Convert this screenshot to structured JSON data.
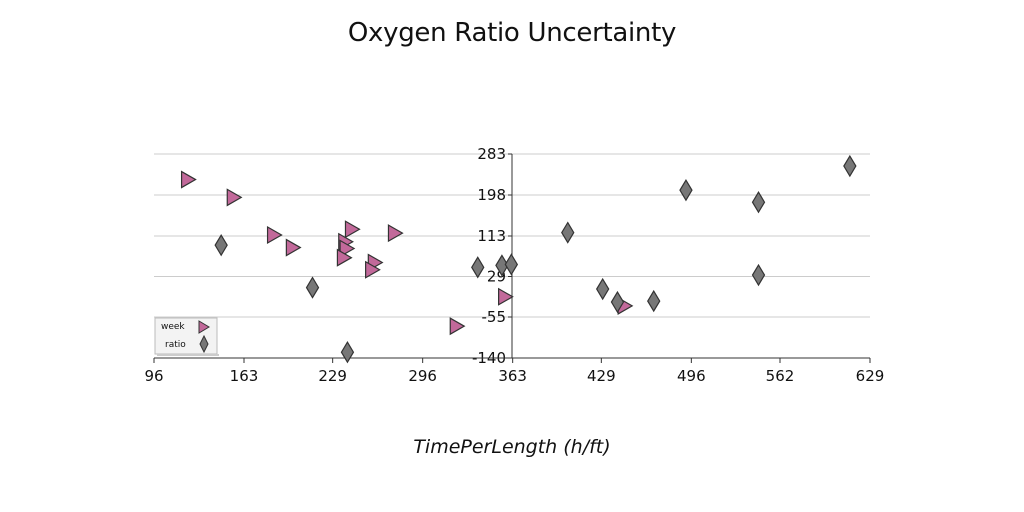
{
  "chart_data": {
    "type": "scatter",
    "title": "Oxygen Ratio Uncertainty",
    "xlabel": "TimePerLength (h/ft)",
    "ylabel": "",
    "xlim": [
      96,
      629
    ],
    "ylim": [
      -140,
      283
    ],
    "x_ticks": [
      "96",
      "163",
      "229",
      "296",
      "363",
      "429",
      "496",
      "562",
      "629"
    ],
    "y_ticks": [
      "-140",
      "-55",
      "29",
      "113",
      "198",
      "283"
    ],
    "grid": "horizontal",
    "legend_position": "lower-left",
    "series": [
      {
        "name": "week",
        "marker": "triangle-right",
        "color": "#c2699a",
        "points": [
          {
            "x": 121,
            "y": 230
          },
          {
            "x": 155,
            "y": 193
          },
          {
            "x": 185,
            "y": 115
          },
          {
            "x": 199,
            "y": 89
          },
          {
            "x": 238,
            "y": 101
          },
          {
            "x": 239,
            "y": 87
          },
          {
            "x": 237,
            "y": 68
          },
          {
            "x": 243,
            "y": 127
          },
          {
            "x": 260,
            "y": 58
          },
          {
            "x": 258,
            "y": 43
          },
          {
            "x": 275,
            "y": 119
          },
          {
            "x": 321,
            "y": -74
          },
          {
            "x": 357,
            "y": -13
          },
          {
            "x": 446,
            "y": -32
          }
        ]
      },
      {
        "name": "ratio",
        "marker": "diamond",
        "color": "#777777",
        "points": [
          {
            "x": 146,
            "y": 94
          },
          {
            "x": 214,
            "y": 6
          },
          {
            "x": 240,
            "y": -128
          },
          {
            "x": 337,
            "y": 48
          },
          {
            "x": 355,
            "y": 52
          },
          {
            "x": 362,
            "y": 54
          },
          {
            "x": 132,
            "y": -99
          },
          {
            "x": 132,
            "y": -99
          },
          {
            "x": 133,
            "y": -99
          },
          {
            "x": 430,
            "y": 3
          },
          {
            "x": 404,
            "y": 120
          },
          {
            "x": 441,
            "y": -24
          },
          {
            "x": 468,
            "y": -22
          },
          {
            "x": 492,
            "y": 208
          },
          {
            "x": 546,
            "y": 32
          },
          {
            "x": 546,
            "y": 183
          },
          {
            "x": 614,
            "y": 258
          }
        ]
      }
    ]
  }
}
